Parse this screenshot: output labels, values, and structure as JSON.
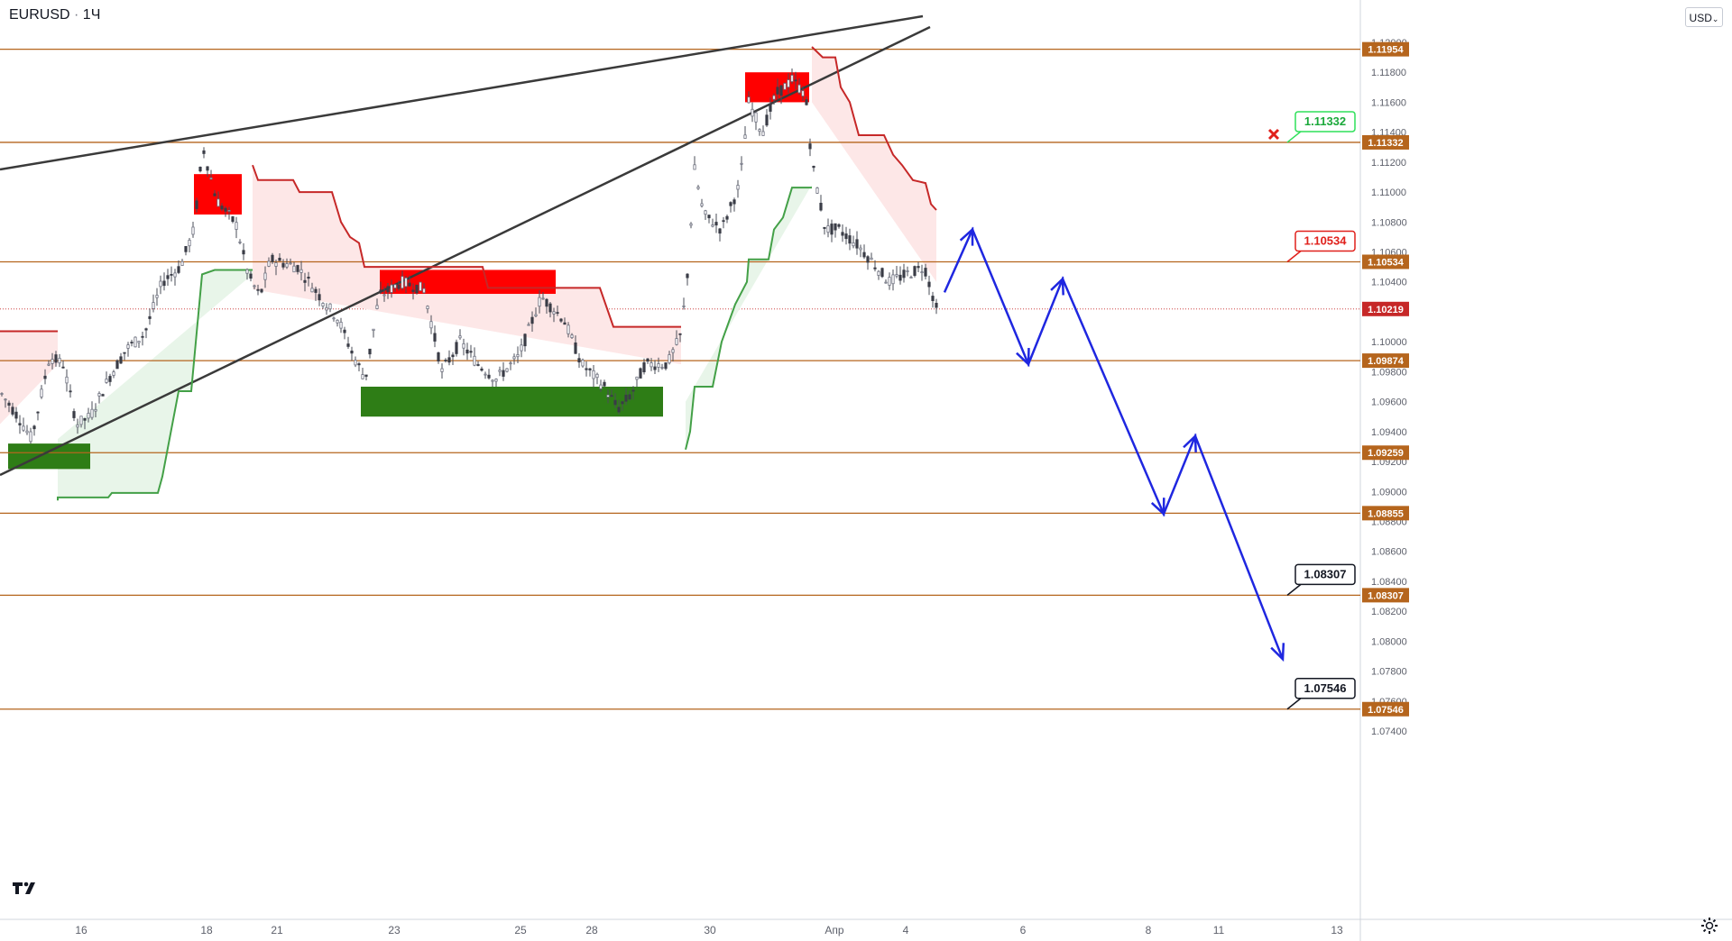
{
  "header": {
    "symbol": "EURUSD",
    "separator": "·",
    "interval": "1Ч"
  },
  "currency_select": {
    "label": "USD",
    "icon": "chevron-down-icon"
  },
  "logo": {
    "name": "tradingview-logo-icon"
  },
  "settings": {
    "icon": "gear-icon"
  },
  "colors": {
    "level_line": "#b5651d",
    "level_tag": "#b5651d",
    "trendline": "#3a3a3a",
    "bull_zone": "#2e7d16",
    "bear_zone": "#ff0000",
    "supertrend_up": "#43a047",
    "supertrend_down": "#c62828",
    "forecast": "#1f27e0",
    "cross": "#e0201b"
  },
  "chart_data": {
    "type": "candlestick",
    "symbol": "EURUSD",
    "timeframe": "1H",
    "ylim": [
      1.0726,
      1.1208
    ],
    "price_scale_ticks": [
      "1.12000",
      "1.11800",
      "1.11600",
      "1.11400",
      "1.11200",
      "1.11000",
      "1.10800",
      "1.10600",
      "1.10400",
      "1.10200",
      "1.10000",
      "1.09800",
      "1.09600",
      "1.09400",
      "1.09200",
      "1.09000",
      "1.08800",
      "1.08600",
      "1.08400",
      "1.08200",
      "1.08000",
      "1.07800",
      "1.07600",
      "1.07400"
    ],
    "time_axis_labels": [
      "16",
      "18",
      "21",
      "23",
      "25",
      "28",
      "30",
      "Апр",
      "4",
      "6",
      "8",
      "11",
      "13"
    ],
    "current_price": "1.10219",
    "levels": [
      "1.11954",
      "1.11332",
      "1.10534",
      "1.09874",
      "1.09259",
      "1.08855",
      "1.08307",
      "1.07546"
    ],
    "callouts": [
      {
        "label": "1.11332",
        "style": "green"
      },
      {
        "label": "1.10534",
        "style": "red"
      },
      {
        "label": "1.08307",
        "style": "black"
      },
      {
        "label": "1.07546",
        "style": "black"
      }
    ],
    "supply_zones": [
      {
        "from": 1.1112,
        "to": 1.1085
      },
      {
        "from": 1.1048,
        "to": 1.1032
      },
      {
        "from": 1.118,
        "to": 1.116
      }
    ],
    "demand_zones": [
      {
        "from": 1.0932,
        "to": 1.0915
      },
      {
        "from": 1.097,
        "to": 1.095
      }
    ],
    "forecast_path": [
      1.1033,
      1.1075,
      1.0985,
      1.1042,
      1.0885,
      1.0937,
      1.0788
    ],
    "trendlines": 2,
    "grid": false
  }
}
